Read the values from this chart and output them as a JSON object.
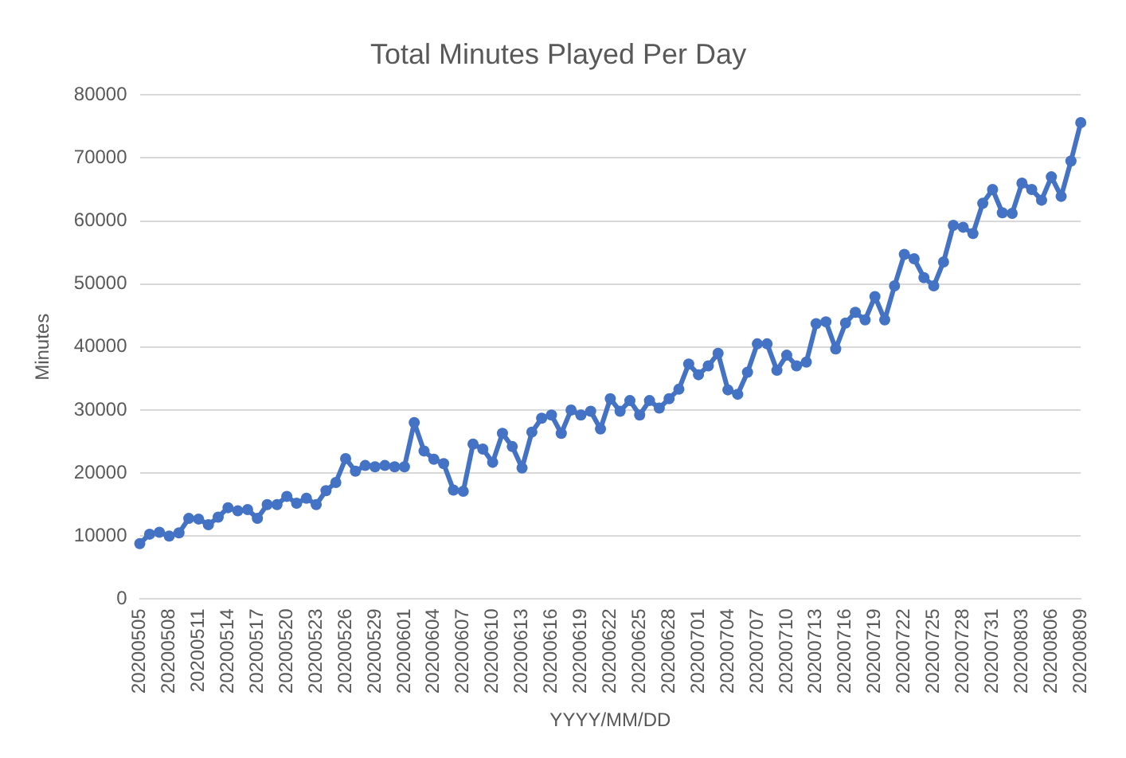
{
  "chart_data": {
    "type": "line",
    "title": "Total Minutes Played Per Day",
    "xlabel": "YYYY/MM/DD",
    "ylabel": "Minutes",
    "categories": [
      "20200505",
      null,
      null,
      "20200508",
      null,
      null,
      "20200511",
      null,
      null,
      "20200514",
      null,
      null,
      "20200517",
      null,
      null,
      "20200520",
      null,
      null,
      "20200523",
      null,
      null,
      "20200526",
      null,
      null,
      "20200529",
      null,
      null,
      "20200601",
      null,
      null,
      "20200604",
      null,
      null,
      "20200607",
      null,
      null,
      "20200610",
      null,
      null,
      "20200613",
      null,
      null,
      "20200616",
      null,
      null,
      "20200619",
      null,
      null,
      "20200622",
      null,
      null,
      "20200625",
      null,
      null,
      "20200628",
      null,
      null,
      "20200701",
      null,
      null,
      "20200704",
      null,
      null,
      "20200707",
      null,
      null,
      "20200710",
      null,
      null,
      "20200713",
      null,
      null,
      "20200716",
      null,
      null,
      "20200719",
      null,
      null,
      "20200722",
      null,
      null,
      "20200725",
      null,
      null,
      "20200728",
      null,
      null,
      "20200731",
      null,
      null,
      "20200803",
      null,
      null,
      "20200806",
      null,
      null,
      "20200809"
    ],
    "series": [
      {
        "color": "#4472c4",
        "values": [
          8800,
          10300,
          10600,
          10000,
          10500,
          12800,
          12700,
          11800,
          13000,
          14500,
          14000,
          14200,
          12800,
          15000,
          15000,
          16300,
          15200,
          16000,
          15000,
          17200,
          18500,
          22300,
          20300,
          21200,
          21000,
          21200,
          21000,
          21000,
          28000,
          23500,
          22200,
          21500,
          17300,
          17100,
          24600,
          23800,
          21700,
          26300,
          24200,
          20800,
          26500,
          28700,
          29200,
          26300,
          30000,
          29200,
          29800,
          27000,
          31800,
          29800,
          31500,
          29200,
          31500,
          30300,
          31800,
          33300,
          37300,
          35600,
          37000,
          39000,
          33200,
          32500,
          36000,
          40500,
          40500,
          36300,
          38700,
          37000,
          37600,
          43700,
          44000,
          39700,
          43800,
          45500,
          44300,
          48000,
          44300,
          49700,
          54700,
          54000,
          51000,
          49700,
          53500,
          59300,
          59000,
          58000,
          62800,
          65000,
          61300,
          61200,
          66000,
          65000,
          63300,
          67000,
          63900,
          69500,
          75600
        ]
      }
    ],
    "ylim": [
      0,
      80000
    ],
    "yticks": [
      0,
      10000,
      20000,
      30000,
      40000,
      50000,
      60000,
      70000,
      80000
    ],
    "grid": "y",
    "marker": "circle",
    "line_style": "solid"
  }
}
